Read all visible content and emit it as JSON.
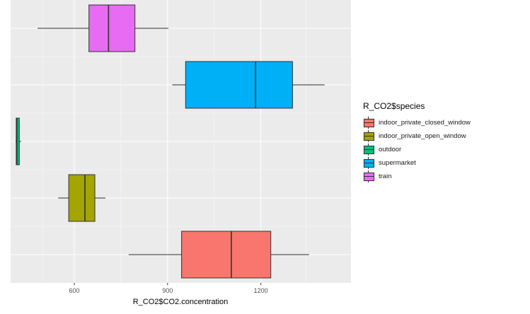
{
  "chart_data": {
    "type": "boxplot",
    "orientation": "horizontal",
    "xlabel": "R_CO2$CO2.concentration",
    "ylabel": "",
    "xticks": [
      600,
      900,
      1200
    ],
    "xlim": [
      395,
      1490
    ],
    "grid": true,
    "legend_position": "right",
    "legend_title": "R_CO2$species",
    "series": [
      {
        "name": "train",
        "color": "#E76BF3",
        "min": 482,
        "q1": 647,
        "median": 710,
        "q3": 795,
        "max": 903
      },
      {
        "name": "supermarket",
        "color": "#00B0F6",
        "min": 915,
        "q1": 958,
        "median": 1183,
        "q3": 1302,
        "max": 1405
      },
      {
        "name": "outdoor",
        "color": "#00BF7D",
        "min": 411,
        "q1": 413,
        "median": 415,
        "q3": 423,
        "max": 429
      },
      {
        "name": "indoor_private_open_window",
        "color": "#A3A500",
        "min": 548,
        "q1": 582,
        "median": 634,
        "q3": 666,
        "max": 700
      },
      {
        "name": "indoor_private_closed_window",
        "color": "#F8766D",
        "min": 775,
        "q1": 945,
        "median": 1105,
        "q3": 1232,
        "max": 1355
      }
    ],
    "legend_order": [
      "indoor_private_closed_window",
      "indoor_private_open_window",
      "outdoor",
      "supermarket",
      "train"
    ]
  }
}
